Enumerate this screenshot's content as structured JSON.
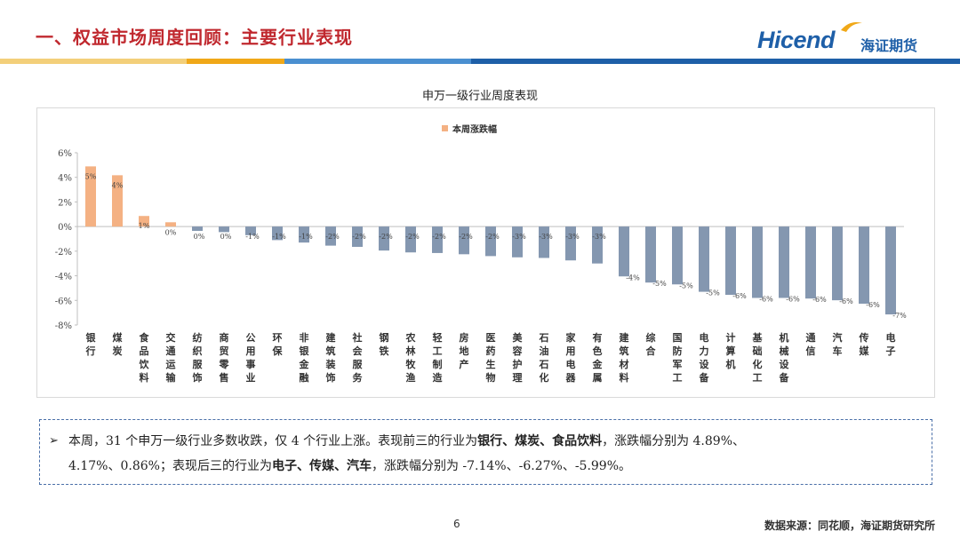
{
  "header": {
    "title": "一、权益市场周度回顾：主要行业表现",
    "logo_text": "Hicend",
    "logo_cn": "海证期货",
    "colors": {
      "title": "#c0282e",
      "brand": "#1e5fa8",
      "bar_gold": "#f0a818",
      "bar_blue": "#1e5fa8"
    }
  },
  "chart_data": {
    "type": "bar",
    "title": "申万一级行业周度表现",
    "legend": [
      "本周涨跌幅"
    ],
    "legend_position": "top-center",
    "ylim": [
      -8,
      6
    ],
    "yticks": [
      6,
      4,
      2,
      0,
      -2,
      -4,
      -6,
      -8
    ],
    "ytick_labels": [
      "6%",
      "4%",
      "2%",
      "0%",
      "-2%",
      "-4%",
      "-6%",
      "-8%"
    ],
    "positive_color": "#f4b183",
    "negative_color": "#8497b0",
    "categories": [
      "银行",
      "煤炭",
      "食品饮料",
      "交通运输",
      "纺织服饰",
      "商贸零售",
      "公用事业",
      "环保",
      "非银金融",
      "建筑装饰",
      "社会服务",
      "钢铁",
      "农林牧渔",
      "轻工制造",
      "房地产",
      "医药生物",
      "美容护理",
      "石油石化",
      "家用电器",
      "有色金属",
      "建筑材料",
      "综合",
      "国防军工",
      "电力设备",
      "计算机",
      "基础化工",
      "机械设备",
      "通信",
      "汽车",
      "传媒",
      "电子"
    ],
    "values": [
      4.89,
      4.17,
      0.86,
      0.35,
      -0.35,
      -0.45,
      -0.7,
      -1.1,
      -1.3,
      -1.55,
      -1.65,
      -1.95,
      -2.1,
      -2.15,
      -2.25,
      -2.4,
      -2.5,
      -2.55,
      -2.75,
      -3.0,
      -4.05,
      -4.55,
      -4.7,
      -5.3,
      -5.55,
      -5.8,
      -5.8,
      -5.85,
      -5.99,
      -6.27,
      -7.14
    ],
    "data_labels": [
      "5%",
      "4%",
      "1%",
      "0%",
      "0%",
      "0%",
      "-1%",
      "-1%",
      "-1%",
      "-2%",
      "-2%",
      "-2%",
      "-2%",
      "-2%",
      "-2%",
      "-2%",
      "-3%",
      "-3%",
      "-3%",
      "-3%",
      "-4%",
      "-5%",
      "-5%",
      "-5%",
      "-6%",
      "-6%",
      "-6%",
      "-6%",
      "-6%",
      "-6%",
      "-7%"
    ]
  },
  "summary": {
    "line1_a": "本周，31 个申万一级行业多数收跌，仅 4 个行业上涨。表现前三的行业为",
    "line1_b": "银行、煤炭、食品饮料",
    "line1_c": "，涨跌幅分别为 4.89%、",
    "line2_a": "4.17%、0.86%；表现后三的行业为",
    "line2_b": "电子、传媒、汽车",
    "line2_c": "，涨跌幅分别为 -7.14%、-6.27%、-5.99%。"
  },
  "footer": {
    "page": "6",
    "source": "数据来源：同花顺，海证期货研究所"
  }
}
